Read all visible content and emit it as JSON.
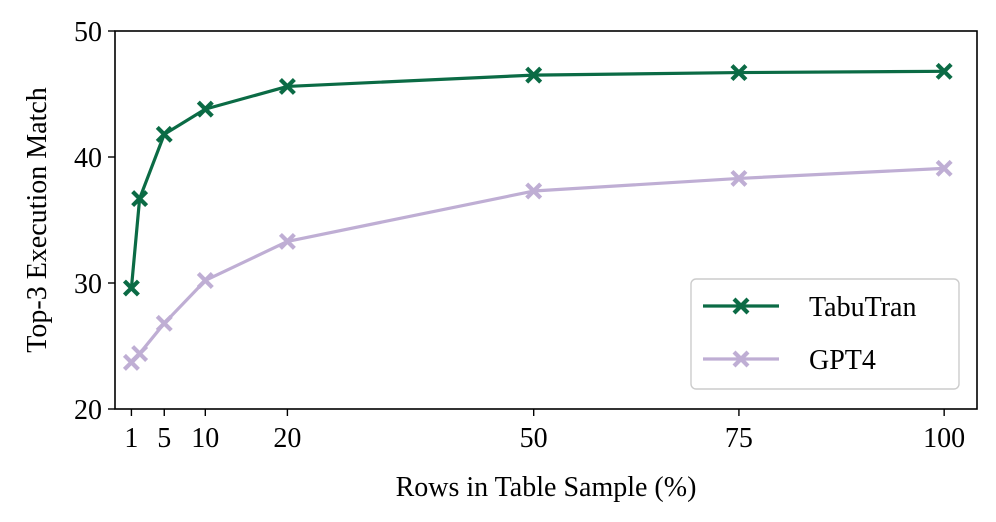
{
  "chart_data": {
    "type": "line",
    "title": "",
    "xlabel": "Rows in Table Sample (%)",
    "ylabel": "Top-3 Execution Match",
    "xlim": [
      -1,
      104
    ],
    "ylim": [
      20,
      50
    ],
    "xticks": [
      1,
      5,
      10,
      20,
      50,
      75,
      100
    ],
    "yticks": [
      20,
      30,
      40,
      50
    ],
    "grid": false,
    "legend_position": "bottom-right",
    "marker": "X",
    "series": [
      {
        "name": "TabuTran",
        "color": "#0b6b45",
        "x": [
          1,
          2,
          5,
          10,
          20,
          50,
          75,
          100
        ],
        "values": [
          29.6,
          36.7,
          41.8,
          43.8,
          45.6,
          46.5,
          46.7,
          46.8
        ]
      },
      {
        "name": "GPT4",
        "color": "#bfaed4",
        "x": [
          1,
          2,
          5,
          10,
          20,
          50,
          75,
          100
        ],
        "values": [
          23.7,
          24.4,
          26.8,
          30.2,
          33.3,
          37.3,
          38.3,
          39.1
        ]
      }
    ]
  }
}
